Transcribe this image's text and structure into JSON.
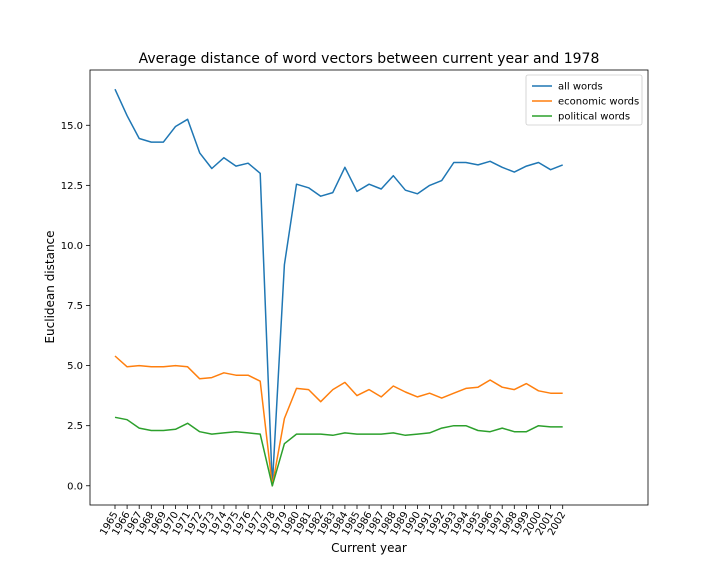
{
  "chart_data": {
    "type": "line",
    "title": "Average distance of word vectors between current year and 1978",
    "xlabel": "Current year",
    "ylabel": "Euclidean distance",
    "x": [
      "1965",
      "1966",
      "1967",
      "1968",
      "1969",
      "1970",
      "1971",
      "1972",
      "1973",
      "1974",
      "1975",
      "1976",
      "1977",
      "1978",
      "1979",
      "1980",
      "1981",
      "1982",
      "1983",
      "1984",
      "1985",
      "1986",
      "1987",
      "1988",
      "1989",
      "1990",
      "1991",
      "1992",
      "1993",
      "1994",
      "1995",
      "1996",
      "1997",
      "1998",
      "1999",
      "2000",
      "2001",
      "2002"
    ],
    "ylim": [
      -0.8,
      17.3
    ],
    "yticks": [
      0.0,
      2.5,
      5.0,
      7.5,
      10.0,
      12.5,
      15.0
    ],
    "ytick_labels": [
      "0.0",
      "2.5",
      "5.0",
      "7.5",
      "10.0",
      "12.5",
      "15.0"
    ],
    "grid": false,
    "legend_position": "top-right",
    "series": [
      {
        "name": "all words",
        "color": "#1f77b4",
        "values": [
          16.5,
          15.4,
          14.45,
          14.3,
          14.3,
          14.95,
          15.25,
          13.85,
          13.2,
          13.65,
          13.3,
          13.42,
          13.0,
          0.0,
          9.2,
          12.55,
          12.4,
          12.05,
          12.2,
          13.25,
          12.25,
          12.55,
          12.35,
          12.9,
          12.3,
          12.15,
          12.5,
          12.7,
          13.45,
          13.45,
          13.35,
          13.5,
          13.25,
          13.05,
          13.3,
          13.45,
          13.15,
          13.35
        ]
      },
      {
        "name": "economic words",
        "color": "#ff7f0e",
        "values": [
          5.4,
          4.95,
          5.0,
          4.95,
          4.95,
          5.0,
          4.95,
          4.45,
          4.5,
          4.7,
          4.6,
          4.6,
          4.35,
          0.0,
          2.8,
          4.05,
          4.0,
          3.5,
          4.0,
          4.3,
          3.75,
          4.0,
          3.7,
          4.15,
          3.9,
          3.7,
          3.85,
          3.65,
          3.85,
          4.05,
          4.1,
          4.4,
          4.1,
          4.0,
          4.25,
          3.95,
          3.85,
          3.85
        ]
      },
      {
        "name": "political words",
        "color": "#2ca02c",
        "values": [
          2.85,
          2.75,
          2.4,
          2.3,
          2.3,
          2.35,
          2.6,
          2.25,
          2.15,
          2.2,
          2.25,
          2.2,
          2.15,
          0.0,
          1.75,
          2.15,
          2.15,
          2.15,
          2.1,
          2.2,
          2.15,
          2.15,
          2.15,
          2.2,
          2.1,
          2.15,
          2.2,
          2.4,
          2.5,
          2.5,
          2.3,
          2.25,
          2.4,
          2.25,
          2.25,
          2.5,
          2.45,
          2.45
        ]
      }
    ]
  }
}
